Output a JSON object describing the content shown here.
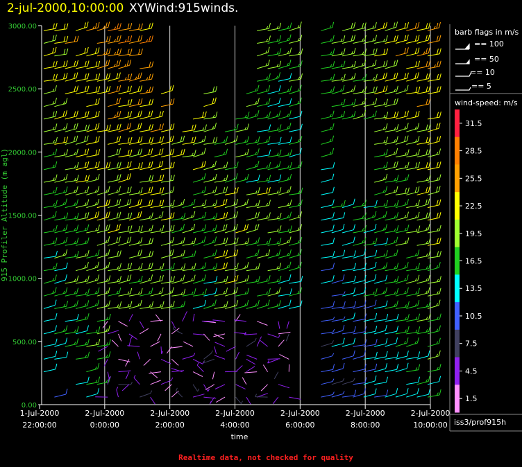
{
  "title": {
    "date": "2-jul-2000,10:00:00",
    "main": "XYWind:915winds."
  },
  "footer": "Realtime data, not checked for quality",
  "station": "iss3/prof915h",
  "colors": {
    "background": "#000000",
    "date": "#ffff00",
    "axis_label": "#33cc33",
    "footer": "#ff2020",
    "grid": "#dddddd"
  },
  "legend": {
    "flags_title": "barb flags in m/s",
    "flags": [
      "== 100",
      "== 50",
      "== 10",
      "== 5"
    ],
    "speed_title": "wind-speed: m/s",
    "speed_labels": [
      "31.5",
      "28.5",
      "25.5",
      "22.5",
      "19.5",
      "16.5",
      "13.5",
      "10.5",
      "7.5",
      "4.5",
      "1.5"
    ],
    "speed_colors": [
      "#ff2040",
      "#ff8000",
      "#ffa000",
      "#ffff00",
      "#a0ff30",
      "#20d020",
      "#00ffff",
      "#4060ff",
      "#404060",
      "#9020f0",
      "#ff90ff"
    ]
  },
  "chart_data": {
    "type": "wind-barb time-height",
    "xlabel": "time",
    "ylabel": "915 Profiler Altitude (m agl)",
    "x_ticks": [
      {
        "date": "1-Jul-2000",
        "time": "22:00:00"
      },
      {
        "date": "2-Jul-2000",
        "time": "0:00:00"
      },
      {
        "date": "2-Jul-2000",
        "time": "2:00:00"
      },
      {
        "date": "2-Jul-2000",
        "time": "4:00:00"
      },
      {
        "date": "2-Jul-2000",
        "time": "6:00:00"
      },
      {
        "date": "2-Jul-2000",
        "time": "8:00:00"
      },
      {
        "date": "2-Jul-2000",
        "time": "10:00:00"
      }
    ],
    "y_ticks": [
      "3000.00",
      "2500.00",
      "2000.00",
      "1500.00",
      "1000.00",
      "500.00",
      "0.00"
    ],
    "xlim": [
      "2000-07-01 22:00",
      "2000-07-02 10:00"
    ],
    "ylim": [
      0,
      3000
    ],
    "grid": "vertical lines at each time tick",
    "sampling": "profiles roughly every 20 minutes, gates roughly every 100 m",
    "speed_range_mps": [
      1.5,
      31.5
    ]
  }
}
